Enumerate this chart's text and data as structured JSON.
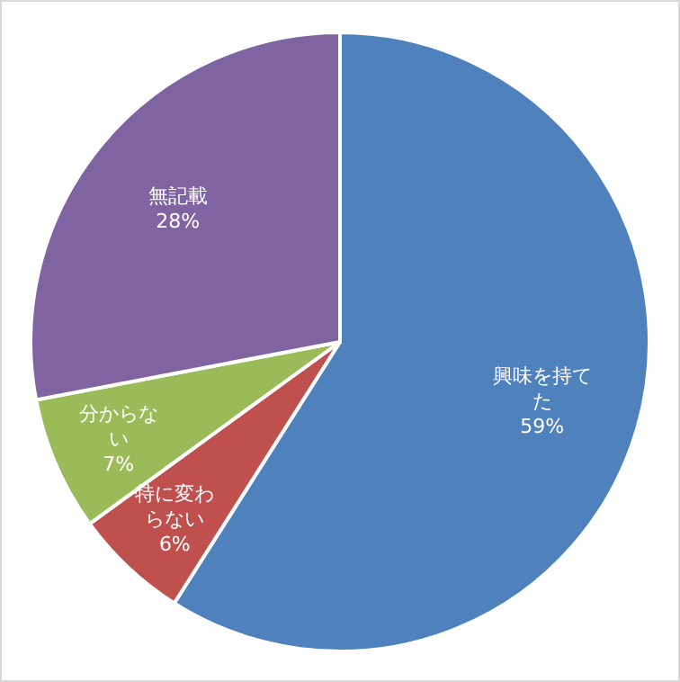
{
  "chart_data": {
    "type": "pie",
    "categories": [
      "興味を持てた",
      "特に変わらない",
      "分からない",
      "無記載"
    ],
    "values": [
      59,
      6,
      7,
      28
    ],
    "colors": [
      "#4f81bd",
      "#c0504d",
      "#9bbb59",
      "#8064a2"
    ],
    "value_labels": [
      "59%",
      "6%",
      "7%",
      "28%"
    ]
  }
}
